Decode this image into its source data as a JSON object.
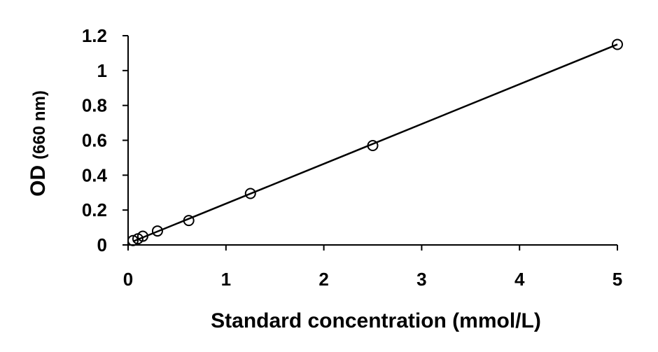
{
  "chart_data": {
    "type": "scatter",
    "title": "",
    "xlabel": "Standard concentration (mmol/L)",
    "ylabel_main": "OD",
    "ylabel_unit": "(660 nm)",
    "xlim": [
      0,
      5
    ],
    "ylim": [
      0,
      1.2
    ],
    "x_ticks": [
      0,
      1,
      2,
      3,
      4,
      5
    ],
    "x_tick_labels": [
      "0",
      "1",
      "2",
      "3",
      "4",
      "5"
    ],
    "y_ticks": [
      0,
      0.2,
      0.4,
      0.6,
      0.8,
      1.0,
      1.2
    ],
    "y_tick_labels": [
      "0",
      "0.2",
      "0.4",
      "0.6",
      "0.8",
      "1",
      "1.2"
    ],
    "grid": false,
    "legend": "none",
    "marker": "open-circle",
    "series": [
      {
        "x": [
          0.05,
          0.1,
          0.15,
          0.3,
          0.62,
          1.25,
          2.5,
          5
        ],
        "y": [
          0.025,
          0.035,
          0.05,
          0.08,
          0.14,
          0.295,
          0.57,
          1.15
        ]
      }
    ],
    "trendline": {
      "type": "linear",
      "x": [
        0.05,
        5
      ],
      "y": [
        0.02,
        1.15
      ]
    },
    "colors": {
      "marker_stroke": "#000000",
      "line": "#000000",
      "axis": "#000000"
    }
  }
}
